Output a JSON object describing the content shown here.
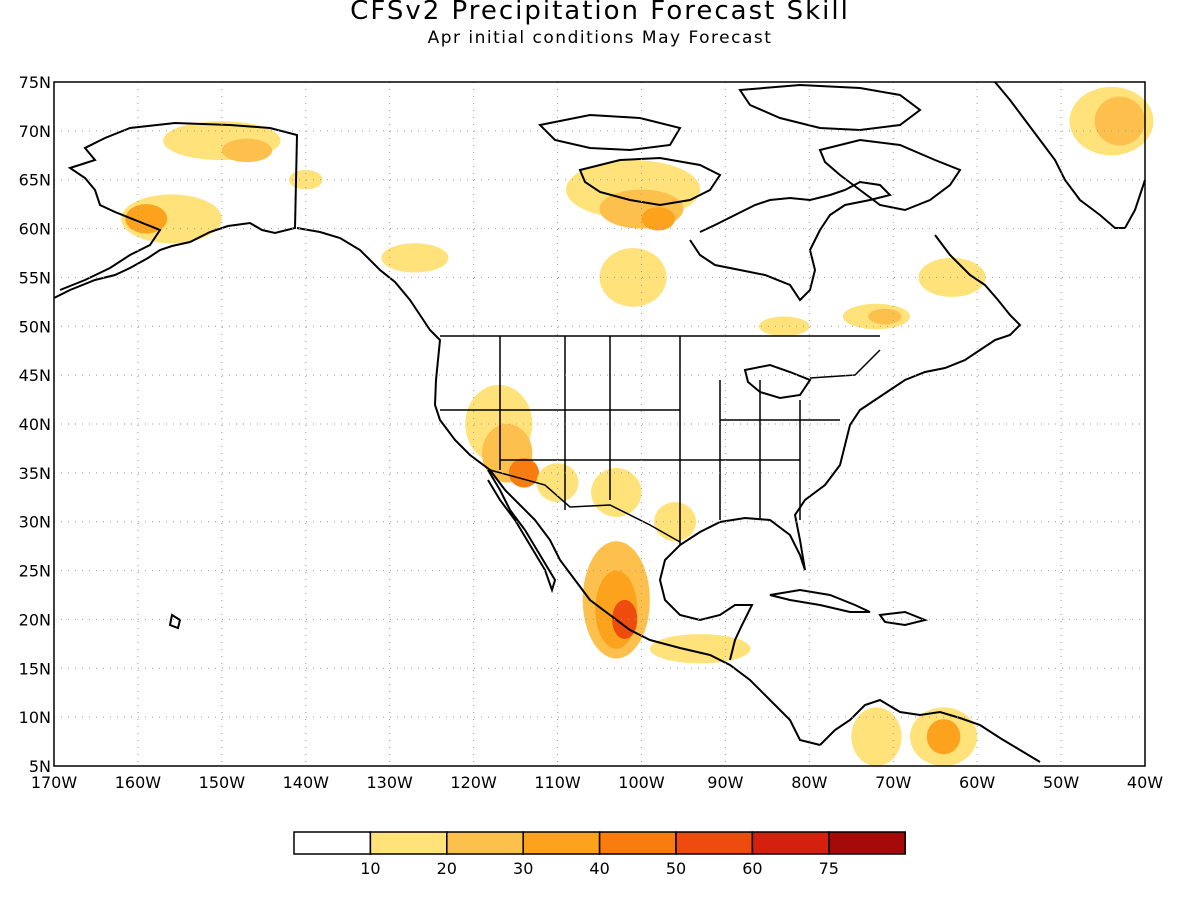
{
  "header": {
    "title": "CFSv2 Precipitation Forecast Skill",
    "subtitle": "Apr initial conditions  May Forecast"
  },
  "map": {
    "lon_range": [
      -170,
      -40
    ],
    "lat_range": [
      5,
      75
    ],
    "grid": "dotted",
    "lat_ticks": [
      "75N",
      "70N",
      "65N",
      "60N",
      "55N",
      "50N",
      "45N",
      "40N",
      "35N",
      "30N",
      "25N",
      "20N",
      "15N",
      "10N",
      "5N"
    ],
    "lon_ticks": [
      "170W",
      "160W",
      "150W",
      "140W",
      "130W",
      "120W",
      "110W",
      "100W",
      "90W",
      "80W",
      "70W",
      "60W",
      "50W",
      "40W"
    ]
  },
  "colorbar": {
    "colors": [
      "#ffffff",
      "#ffe27a",
      "#fdc04c",
      "#fda21c",
      "#f87d0e",
      "#ee4b0e",
      "#d4200c",
      "#a50a0a"
    ],
    "labels": [
      "10",
      "20",
      "30",
      "40",
      "50",
      "60",
      "75"
    ]
  },
  "skill_regions": [
    {
      "lon": -150,
      "lat": 69,
      "rx": 7,
      "ry": 2,
      "level": 1
    },
    {
      "lon": -147,
      "lat": 68,
      "rx": 3,
      "ry": 1.2,
      "level": 2
    },
    {
      "lon": -156,
      "lat": 61,
      "rx": 6,
      "ry": 2.5,
      "level": 1
    },
    {
      "lon": -159,
      "lat": 61,
      "rx": 2.5,
      "ry": 1.5,
      "level": 3
    },
    {
      "lon": -140,
      "lat": 65,
      "rx": 2,
      "ry": 1,
      "level": 1
    },
    {
      "lon": -127,
      "lat": 57,
      "rx": 4,
      "ry": 1.5,
      "level": 1
    },
    {
      "lon": -101,
      "lat": 64,
      "rx": 8,
      "ry": 3,
      "level": 1
    },
    {
      "lon": -100,
      "lat": 62,
      "rx": 5,
      "ry": 2,
      "level": 2
    },
    {
      "lon": -98,
      "lat": 61,
      "rx": 2,
      "ry": 1.2,
      "level": 3
    },
    {
      "lon": -101,
      "lat": 55,
      "rx": 4,
      "ry": 3,
      "level": 1
    },
    {
      "lon": -83,
      "lat": 50,
      "rx": 3,
      "ry": 1,
      "level": 1
    },
    {
      "lon": -72,
      "lat": 51,
      "rx": 4,
      "ry": 1.3,
      "level": 1
    },
    {
      "lon": -71,
      "lat": 51,
      "rx": 2,
      "ry": 0.8,
      "level": 2
    },
    {
      "lon": -63,
      "lat": 55,
      "rx": 4,
      "ry": 2,
      "level": 1
    },
    {
      "lon": -44,
      "lat": 71,
      "rx": 5,
      "ry": 3.5,
      "level": 1
    },
    {
      "lon": -43,
      "lat": 71,
      "rx": 3,
      "ry": 2.5,
      "level": 2
    },
    {
      "lon": -117,
      "lat": 40,
      "rx": 4,
      "ry": 4,
      "level": 1
    },
    {
      "lon": -116,
      "lat": 37,
      "rx": 3,
      "ry": 3,
      "level": 2
    },
    {
      "lon": -114,
      "lat": 35,
      "rx": 1.8,
      "ry": 1.5,
      "level": 4
    },
    {
      "lon": -110,
      "lat": 34,
      "rx": 2.5,
      "ry": 2,
      "level": 1
    },
    {
      "lon": -103,
      "lat": 33,
      "rx": 3,
      "ry": 2.5,
      "level": 1
    },
    {
      "lon": -96,
      "lat": 30,
      "rx": 2.5,
      "ry": 2,
      "level": 1
    },
    {
      "lon": -103,
      "lat": 22,
      "rx": 4,
      "ry": 6,
      "level": 2
    },
    {
      "lon": -103,
      "lat": 21,
      "rx": 2.5,
      "ry": 4,
      "level": 3
    },
    {
      "lon": -102,
      "lat": 20,
      "rx": 1.5,
      "ry": 2,
      "level": 5
    },
    {
      "lon": -93,
      "lat": 17,
      "rx": 6,
      "ry": 1.5,
      "level": 1
    },
    {
      "lon": -72,
      "lat": 8,
      "rx": 3,
      "ry": 3,
      "level": 1
    },
    {
      "lon": -64,
      "lat": 8,
      "rx": 4,
      "ry": 3,
      "level": 1
    },
    {
      "lon": -64,
      "lat": 8,
      "rx": 2,
      "ry": 1.8,
      "level": 3
    }
  ]
}
